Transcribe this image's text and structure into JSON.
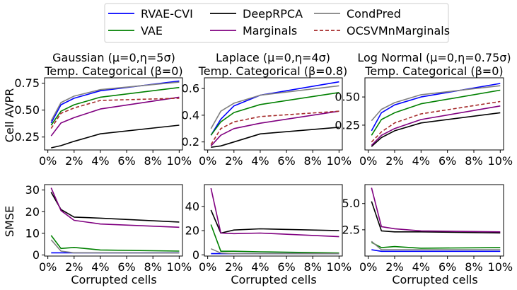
{
  "legend": [
    {
      "name": "RVAE-CVI",
      "color": "#0000ff",
      "dash": false
    },
    {
      "name": "VAE",
      "color": "#008000",
      "dash": false
    },
    {
      "name": "DeepRPCA",
      "color": "#000000",
      "dash": false
    },
    {
      "name": "Marginals",
      "color": "#800080",
      "dash": false
    },
    {
      "name": "CondPred",
      "color": "#808080",
      "dash": false
    },
    {
      "name": "OCSVMnMarginals",
      "color": "#a52a2a",
      "dash": true
    }
  ],
  "row_labels": {
    "top": "Cell AVPR",
    "bottom": "SMSE"
  },
  "xlabel": "Corrupted cells",
  "x_ticks": [
    "0%",
    "2%",
    "4%",
    "6%",
    "8%",
    "10%"
  ],
  "x_tick_values": [
    0,
    2,
    4,
    6,
    8,
    10
  ],
  "chart_data": [
    {
      "type": "line",
      "title_line1": "Gaussian (μ=0,η=5σ)",
      "title_line2": "Temp. Categorical (β=0)",
      "ylabel": "Cell AVPR",
      "x": [
        0.25,
        1,
        2,
        4,
        10
      ],
      "xlim": [
        -0.25,
        10.25
      ],
      "ylim": [
        0.13,
        0.8
      ],
      "yticks": [
        0.25,
        0.5,
        0.75
      ],
      "ytick_labels": [
        "0.25",
        "0.50",
        "0.75"
      ],
      "series": [
        {
          "name": "RVAE-CVI",
          "values": [
            0.38,
            0.55,
            0.61,
            0.68,
            0.77
          ]
        },
        {
          "name": "VAE",
          "values": [
            0.36,
            0.49,
            0.55,
            0.62,
            0.71
          ]
        },
        {
          "name": "DeepRPCA",
          "values": [
            0.15,
            0.17,
            0.21,
            0.28,
            0.36
          ]
        },
        {
          "name": "Marginals",
          "values": [
            0.26,
            0.38,
            0.43,
            0.51,
            0.62
          ]
        },
        {
          "name": "CondPred",
          "values": [
            0.4,
            0.57,
            0.63,
            0.69,
            0.76
          ]
        },
        {
          "name": "OCSVMnMarginals",
          "values": [
            0.33,
            0.47,
            0.52,
            0.59,
            0.61
          ]
        }
      ]
    },
    {
      "type": "line",
      "title_line1": "Laplace (μ=0,η=4σ)",
      "title_line2": "Temp. Categorical (β=0.8)",
      "ylabel": "",
      "x": [
        0.25,
        1,
        2,
        4,
        10
      ],
      "xlim": [
        -0.25,
        10.25
      ],
      "ylim": [
        0.14,
        0.68
      ],
      "yticks": [
        0.2,
        0.4,
        0.6
      ],
      "ytick_labels": [
        "0.2",
        "0.4",
        "0.6"
      ],
      "series": [
        {
          "name": "RVAE-CVI",
          "values": [
            0.25,
            0.37,
            0.47,
            0.55,
            0.65
          ]
        },
        {
          "name": "VAE",
          "values": [
            0.25,
            0.35,
            0.42,
            0.48,
            0.57
          ]
        },
        {
          "name": "DeepRPCA",
          "values": [
            0.16,
            0.17,
            0.2,
            0.26,
            0.31
          ]
        },
        {
          "name": "Marginals",
          "values": [
            0.17,
            0.25,
            0.3,
            0.34,
            0.43
          ]
        },
        {
          "name": "CondPred",
          "values": [
            0.3,
            0.43,
            0.49,
            0.55,
            0.62
          ]
        },
        {
          "name": "OCSVMnMarginals",
          "values": [
            0.18,
            0.3,
            0.35,
            0.39,
            0.43
          ]
        }
      ]
    },
    {
      "type": "line",
      "title_line1": "Log Normal (μ=0,η=0.75σ)",
      "title_line2": "Temp. Categorical (β=0)",
      "ylabel": "",
      "x": [
        0.25,
        1,
        2,
        4,
        10
      ],
      "xlim": [
        -0.25,
        10.25
      ],
      "ylim": [
        0.03,
        0.67
      ],
      "yticks": [
        0.25,
        0.5
      ],
      "ytick_labels": [
        "0.25",
        "0.50"
      ],
      "series": [
        {
          "name": "RVAE-CVI",
          "values": [
            0.2,
            0.36,
            0.43,
            0.5,
            0.62
          ]
        },
        {
          "name": "VAE",
          "values": [
            0.16,
            0.3,
            0.36,
            0.44,
            0.56
          ]
        },
        {
          "name": "DeepRPCA",
          "values": [
            0.06,
            0.14,
            0.2,
            0.27,
            0.36
          ]
        },
        {
          "name": "Marginals",
          "values": [
            0.07,
            0.16,
            0.22,
            0.3,
            0.42
          ]
        },
        {
          "name": "CondPred",
          "values": [
            0.29,
            0.39,
            0.45,
            0.52,
            0.6
          ]
        },
        {
          "name": "OCSVMnMarginals",
          "values": [
            0.1,
            0.19,
            0.27,
            0.35,
            0.46
          ]
        }
      ]
    },
    {
      "type": "line",
      "title_line1": "",
      "title_line2": "",
      "ylabel": "SMSE",
      "x": [
        0.25,
        1,
        2,
        4,
        10
      ],
      "xlim": [
        -0.25,
        10.25
      ],
      "ylim": [
        -0.5,
        32.5
      ],
      "yticks": [
        0,
        10,
        20,
        30
      ],
      "ytick_labels": [
        "0",
        "10",
        "20",
        "30"
      ],
      "series": [
        {
          "name": "RVAE-CVI",
          "values": [
            1.0,
            1.0,
            1.0,
            1.0,
            1.0
          ]
        },
        {
          "name": "VAE",
          "values": [
            9.0,
            3.0,
            3.5,
            2.3,
            1.8
          ]
        },
        {
          "name": "DeepRPCA",
          "values": [
            29.0,
            21.0,
            17.5,
            17.0,
            15.2
          ]
        },
        {
          "name": "Marginals",
          "values": [
            31.0,
            20.5,
            16.0,
            14.3,
            12.8
          ]
        },
        {
          "name": "CondPred",
          "values": [
            7.0,
            1.8,
            1.0,
            1.0,
            0.9
          ]
        },
        {
          "name": "OCSVMnMarginals",
          "values": [
            null,
            null,
            null,
            null,
            null
          ]
        }
      ]
    },
    {
      "type": "line",
      "title_line1": "",
      "title_line2": "",
      "ylabel": "",
      "x": [
        0.25,
        1,
        2,
        4,
        10
      ],
      "xlim": [
        -0.25,
        10.25
      ],
      "ylim": [
        -1,
        58
      ],
      "yticks": [
        0,
        20,
        40
      ],
      "ytick_labels": [
        "0",
        "20",
        "40"
      ],
      "series": [
        {
          "name": "RVAE-CVI",
          "values": [
            1.0,
            1.0,
            1.0,
            1.0,
            1.0
          ]
        },
        {
          "name": "VAE",
          "values": [
            25.0,
            3.0,
            3.0,
            2.5,
            1.5
          ]
        },
        {
          "name": "DeepRPCA",
          "values": [
            37.0,
            18.0,
            20.5,
            21.5,
            20.0
          ]
        },
        {
          "name": "Marginals",
          "values": [
            55.0,
            18.0,
            17.5,
            18.0,
            15.0
          ]
        },
        {
          "name": "CondPred",
          "values": [
            5.0,
            1.5,
            1.0,
            1.0,
            1.0
          ]
        },
        {
          "name": "OCSVMnMarginals",
          "values": [
            null,
            null,
            null,
            null,
            null
          ]
        }
      ]
    },
    {
      "type": "line",
      "title_line1": "",
      "title_line2": "",
      "ylabel": "",
      "x": [
        0.25,
        1,
        2,
        4,
        10
      ],
      "xlim": [
        -0.25,
        10.25
      ],
      "ylim": [
        0.0,
        6.8
      ],
      "yticks": [
        2.5,
        5.0
      ],
      "ytick_labels": [
        "2.5",
        "5.0"
      ],
      "series": [
        {
          "name": "RVAE-CVI",
          "values": [
            0.6,
            0.45,
            0.45,
            0.45,
            0.45
          ]
        },
        {
          "name": "VAE",
          "values": [
            1.3,
            0.8,
            0.9,
            0.75,
            0.8
          ]
        },
        {
          "name": "DeepRPCA",
          "values": [
            5.2,
            2.4,
            2.3,
            2.3,
            2.2
          ]
        },
        {
          "name": "Marginals",
          "values": [
            6.5,
            2.8,
            2.6,
            2.4,
            2.3
          ]
        },
        {
          "name": "CondPred",
          "values": [
            1.4,
            0.6,
            0.6,
            0.6,
            0.6
          ]
        },
        {
          "name": "OCSVMnMarginals",
          "values": [
            null,
            null,
            null,
            null,
            null
          ]
        }
      ]
    }
  ]
}
